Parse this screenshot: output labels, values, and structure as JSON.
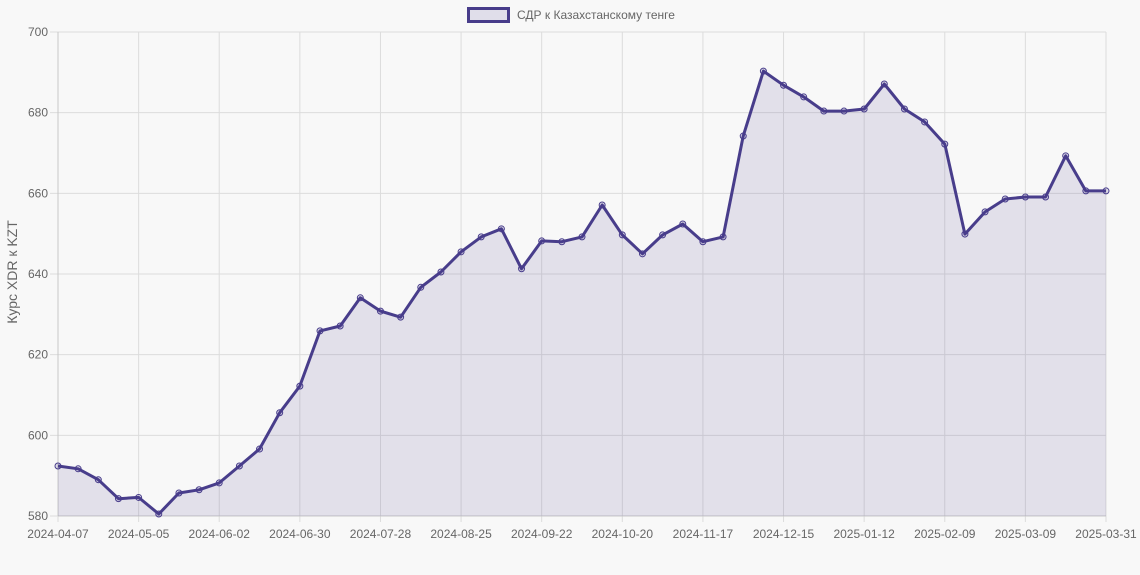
{
  "legend": {
    "label": "СДР к Казахстанскому тенге",
    "border_color": "#483d8b",
    "fill_color": "#e0deea"
  },
  "axes": {
    "y_title": "Курс XDR к KZT"
  },
  "colors": {
    "line": "#483d8b",
    "area": "rgba(72,61,139,0.12)",
    "grid": "#dcdcdc",
    "tick_text": "#666666",
    "background": "#f8f8f8"
  },
  "chart_data": {
    "type": "area",
    "title": "",
    "xlabel": "",
    "ylabel": "Курс XDR к KZT",
    "ylim": [
      580,
      700
    ],
    "y_ticks": [
      580,
      600,
      620,
      640,
      660,
      680,
      700
    ],
    "x_tick_labels": [
      "2024-04-07",
      "2024-05-05",
      "2024-06-02",
      "2024-06-30",
      "2024-07-28",
      "2024-08-25",
      "2024-09-22",
      "2024-10-20",
      "2024-11-17",
      "2024-12-15",
      "2025-01-12",
      "2025-02-09",
      "2025-03-09",
      "2025-03-31"
    ],
    "grid": true,
    "legend_position": "top",
    "categories": [
      "2024-04-07",
      "2024-04-14",
      "2024-04-21",
      "2024-04-28",
      "2024-05-05",
      "2024-05-12",
      "2024-05-19",
      "2024-05-26",
      "2024-06-02",
      "2024-06-09",
      "2024-06-16",
      "2024-06-23",
      "2024-06-30",
      "2024-07-07",
      "2024-07-14",
      "2024-07-21",
      "2024-07-28",
      "2024-08-04",
      "2024-08-11",
      "2024-08-18",
      "2024-08-25",
      "2024-09-01",
      "2024-09-08",
      "2024-09-15",
      "2024-09-22",
      "2024-09-29",
      "2024-10-06",
      "2024-10-13",
      "2024-10-20",
      "2024-10-27",
      "2024-11-03",
      "2024-11-10",
      "2024-11-17",
      "2024-11-24",
      "2024-12-01",
      "2024-12-08",
      "2024-12-15",
      "2024-12-22",
      "2024-12-29",
      "2025-01-05",
      "2025-01-12",
      "2025-01-19",
      "2025-01-26",
      "2025-02-02",
      "2025-02-09",
      "2025-02-16",
      "2025-02-23",
      "2025-03-02",
      "2025-03-09",
      "2025-03-16",
      "2025-03-23",
      "2025-03-30",
      "2025-03-31"
    ],
    "series": [
      {
        "name": "СДР к Казахстанскому тенге",
        "values": [
          592.4,
          591.7,
          589.0,
          584.3,
          584.6,
          580.5,
          585.7,
          586.5,
          588.2,
          592.4,
          596.6,
          605.6,
          612.2,
          625.9,
          627.1,
          634.1,
          630.8,
          629.3,
          636.7,
          640.5,
          645.5,
          649.2,
          651.2,
          641.3,
          648.2,
          648.0,
          649.2,
          657.1,
          649.7,
          645.0,
          649.7,
          652.4,
          648.0,
          649.2,
          674.2,
          690.3,
          686.8,
          683.9,
          680.4,
          680.4,
          680.9,
          687.1,
          680.9,
          677.7,
          672.2,
          649.9,
          655.4,
          658.6,
          659.1,
          659.1,
          669.3,
          660.6,
          660.6
        ]
      }
    ]
  }
}
